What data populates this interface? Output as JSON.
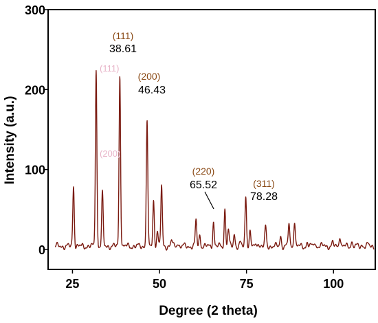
{
  "chart_data": {
    "type": "line",
    "xlabel": "Degree (2 theta)",
    "ylabel": "Intensity (a.u.)",
    "xlim": [
      18,
      112
    ],
    "ylim": [
      -25,
      300
    ],
    "x_ticks": [
      "25",
      "50",
      "75",
      "100"
    ],
    "x_tick_values": [
      25,
      50,
      75,
      100
    ],
    "y_ticks": [
      "0",
      "100",
      "200",
      "300"
    ],
    "y_tick_values": [
      0,
      100,
      200,
      300
    ],
    "grid": false,
    "series": [
      {
        "color": "#7a1a10",
        "baseline": 4,
        "peaks": [
          {
            "x": 25.3,
            "y": 80
          },
          {
            "x": 31.8,
            "y": 226
          },
          {
            "x": 33.6,
            "y": 70
          },
          {
            "x": 38.61,
            "y": 218
          },
          {
            "x": 46.43,
            "y": 162
          },
          {
            "x": 48.3,
            "y": 60
          },
          {
            "x": 49.4,
            "y": 24
          },
          {
            "x": 50.6,
            "y": 80
          },
          {
            "x": 53.5,
            "y": 12
          },
          {
            "x": 55.2,
            "y": 9
          },
          {
            "x": 60.5,
            "y": 36
          },
          {
            "x": 61.6,
            "y": 18
          },
          {
            "x": 65.52,
            "y": 35
          },
          {
            "x": 68.8,
            "y": 50
          },
          {
            "x": 69.8,
            "y": 25
          },
          {
            "x": 71.5,
            "y": 20
          },
          {
            "x": 73.2,
            "y": 8
          },
          {
            "x": 74.8,
            "y": 67
          },
          {
            "x": 76.0,
            "y": 22
          },
          {
            "x": 78.28,
            "y": 10
          },
          {
            "x": 80.5,
            "y": 28
          },
          {
            "x": 84.8,
            "y": 17
          },
          {
            "x": 87.2,
            "y": 33
          },
          {
            "x": 88.8,
            "y": 36
          },
          {
            "x": 92.5,
            "y": 8
          },
          {
            "x": 94.5,
            "y": 10
          },
          {
            "x": 97.5,
            "y": 6
          },
          {
            "x": 99.8,
            "y": 8
          },
          {
            "x": 101.8,
            "y": 18
          },
          {
            "x": 105.2,
            "y": 10
          },
          {
            "x": 108.2,
            "y": 6
          },
          {
            "x": 110.0,
            "y": 6
          }
        ]
      }
    ],
    "annotations": [
      {
        "hkl": "(111)",
        "value": "38.61",
        "x": 38.61
      },
      {
        "hkl": "(200)",
        "value": "46.43",
        "x": 46.43
      },
      {
        "hkl": "(220)",
        "value": "65.52",
        "x": 65.52
      },
      {
        "hkl": "(311)",
        "value": "78.28",
        "x": 78.28
      }
    ],
    "ghost_labels": [
      "(111)",
      "(200)"
    ]
  }
}
